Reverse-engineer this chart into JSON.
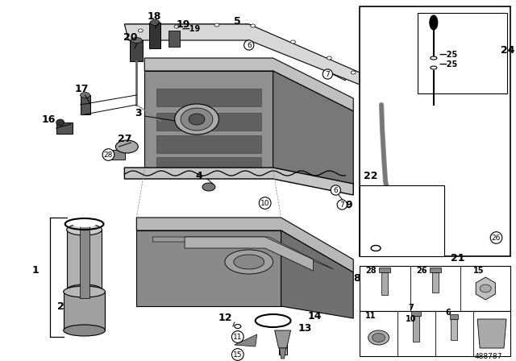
{
  "diagram_number": "488787",
  "bg_color": "#ffffff",
  "lc": "#000000",
  "gray_light": "#c8c8c8",
  "gray_mid": "#989898",
  "gray_dark": "#686868",
  "gray_very_dark": "#484848"
}
